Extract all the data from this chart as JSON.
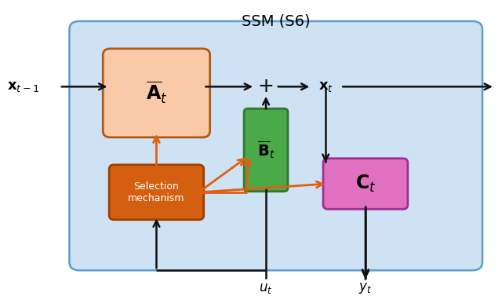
{
  "title": "SSM (S6)",
  "bg_box_color": "#cfe2f3",
  "bg_box_edge_color": "#5a9ec9",
  "A_box_color": "#f9c9a8",
  "A_box_edge_color": "#b05a10",
  "A_label": "$\\overline{\\mathbf{A}}_t$",
  "B_box_color": "#4aaa4a",
  "B_box_edge_color": "#2e7a2e",
  "B_label": "$\\overline{\\mathbf{B}}_t$",
  "C_box_color": "#e070c0",
  "C_box_edge_color": "#a03090",
  "C_label": "$\\mathbf{C}_t$",
  "Sel_box_color": "#d45f10",
  "Sel_box_edge_color": "#a04000",
  "Sel_label": "Selection\nmechanism",
  "arrow_color_black": "#111111",
  "arrow_color_orange": "#e06010",
  "x_t1_label": "$\\mathbf{x}_{t-1}$",
  "x_t_label": "$\\mathbf{x}_t$",
  "u_t_label": "$u_t$",
  "y_t_label": "$y_t$",
  "plus_label": "+",
  "figsize": [
    6.4,
    3.82
  ],
  "dpi": 100
}
